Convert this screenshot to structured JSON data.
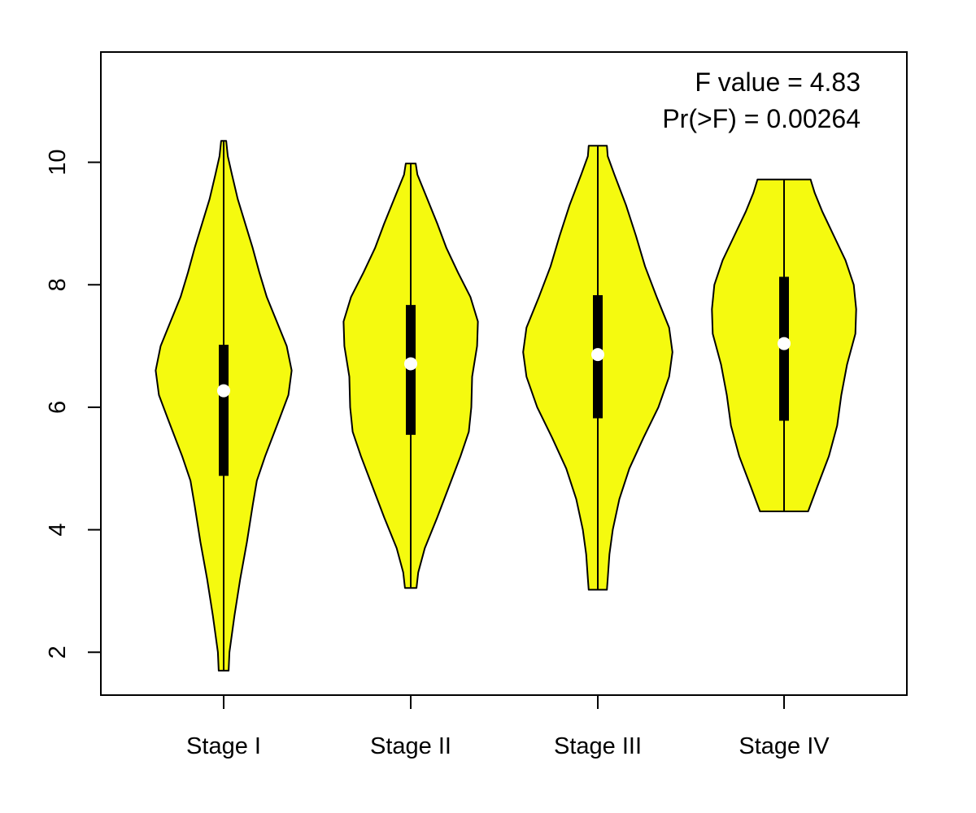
{
  "chart_data": {
    "type": "violin",
    "categories": [
      "Stage I",
      "Stage II",
      "Stage III",
      "Stage IV"
    ],
    "ylim": [
      1.3,
      11.8
    ],
    "yticks": [
      2,
      4,
      6,
      8,
      10
    ],
    "fill_color": "#F5FA0F",
    "annotations": [
      "F value = 4.83",
      "Pr(>F) = 0.00264"
    ],
    "series": [
      {
        "min": 1.7,
        "q1": 4.88,
        "median": 6.27,
        "q3": 7.02,
        "max": 10.35,
        "density": [
          [
            1.7,
            0.06
          ],
          [
            2.0,
            0.07
          ],
          [
            2.6,
            0.13
          ],
          [
            3.2,
            0.2
          ],
          [
            3.8,
            0.28
          ],
          [
            4.4,
            0.35
          ],
          [
            4.8,
            0.4
          ],
          [
            5.2,
            0.5
          ],
          [
            5.8,
            0.67
          ],
          [
            6.2,
            0.78
          ],
          [
            6.6,
            0.82
          ],
          [
            7.0,
            0.76
          ],
          [
            7.4,
            0.64
          ],
          [
            7.8,
            0.52
          ],
          [
            8.2,
            0.43
          ],
          [
            8.6,
            0.35
          ],
          [
            9.0,
            0.26
          ],
          [
            9.4,
            0.17
          ],
          [
            9.8,
            0.1
          ],
          [
            10.1,
            0.05
          ],
          [
            10.35,
            0.03
          ]
        ]
      },
      {
        "min": 3.05,
        "q1": 5.55,
        "median": 6.71,
        "q3": 7.67,
        "max": 9.98,
        "density": [
          [
            3.05,
            0.07
          ],
          [
            3.3,
            0.09
          ],
          [
            3.7,
            0.17
          ],
          [
            4.2,
            0.32
          ],
          [
            4.7,
            0.46
          ],
          [
            5.2,
            0.6
          ],
          [
            5.6,
            0.7
          ],
          [
            6.0,
            0.73
          ],
          [
            6.5,
            0.74
          ],
          [
            7.0,
            0.8
          ],
          [
            7.4,
            0.81
          ],
          [
            7.8,
            0.72
          ],
          [
            8.2,
            0.57
          ],
          [
            8.6,
            0.43
          ],
          [
            9.0,
            0.32
          ],
          [
            9.4,
            0.2
          ],
          [
            9.8,
            0.08
          ],
          [
            9.98,
            0.06
          ]
        ]
      },
      {
        "min": 3.02,
        "q1": 5.82,
        "median": 6.86,
        "q3": 7.83,
        "max": 10.27,
        "density": [
          [
            3.02,
            0.11
          ],
          [
            3.2,
            0.12
          ],
          [
            3.6,
            0.14
          ],
          [
            4.0,
            0.18
          ],
          [
            4.5,
            0.26
          ],
          [
            5.0,
            0.38
          ],
          [
            5.5,
            0.55
          ],
          [
            6.0,
            0.73
          ],
          [
            6.5,
            0.86
          ],
          [
            6.9,
            0.9
          ],
          [
            7.3,
            0.86
          ],
          [
            7.8,
            0.71
          ],
          [
            8.3,
            0.57
          ],
          [
            8.8,
            0.46
          ],
          [
            9.3,
            0.34
          ],
          [
            9.8,
            0.2
          ],
          [
            10.1,
            0.12
          ],
          [
            10.27,
            0.11
          ]
        ]
      },
      {
        "min": 4.3,
        "q1": 5.78,
        "median": 7.04,
        "q3": 8.13,
        "max": 9.72,
        "density": [
          [
            4.3,
            0.29
          ],
          [
            4.7,
            0.4
          ],
          [
            5.2,
            0.54
          ],
          [
            5.7,
            0.64
          ],
          [
            6.2,
            0.69
          ],
          [
            6.7,
            0.76
          ],
          [
            7.2,
            0.86
          ],
          [
            7.6,
            0.87
          ],
          [
            8.0,
            0.84
          ],
          [
            8.4,
            0.74
          ],
          [
            8.8,
            0.6
          ],
          [
            9.2,
            0.46
          ],
          [
            9.5,
            0.37
          ],
          [
            9.72,
            0.32
          ]
        ]
      }
    ]
  }
}
